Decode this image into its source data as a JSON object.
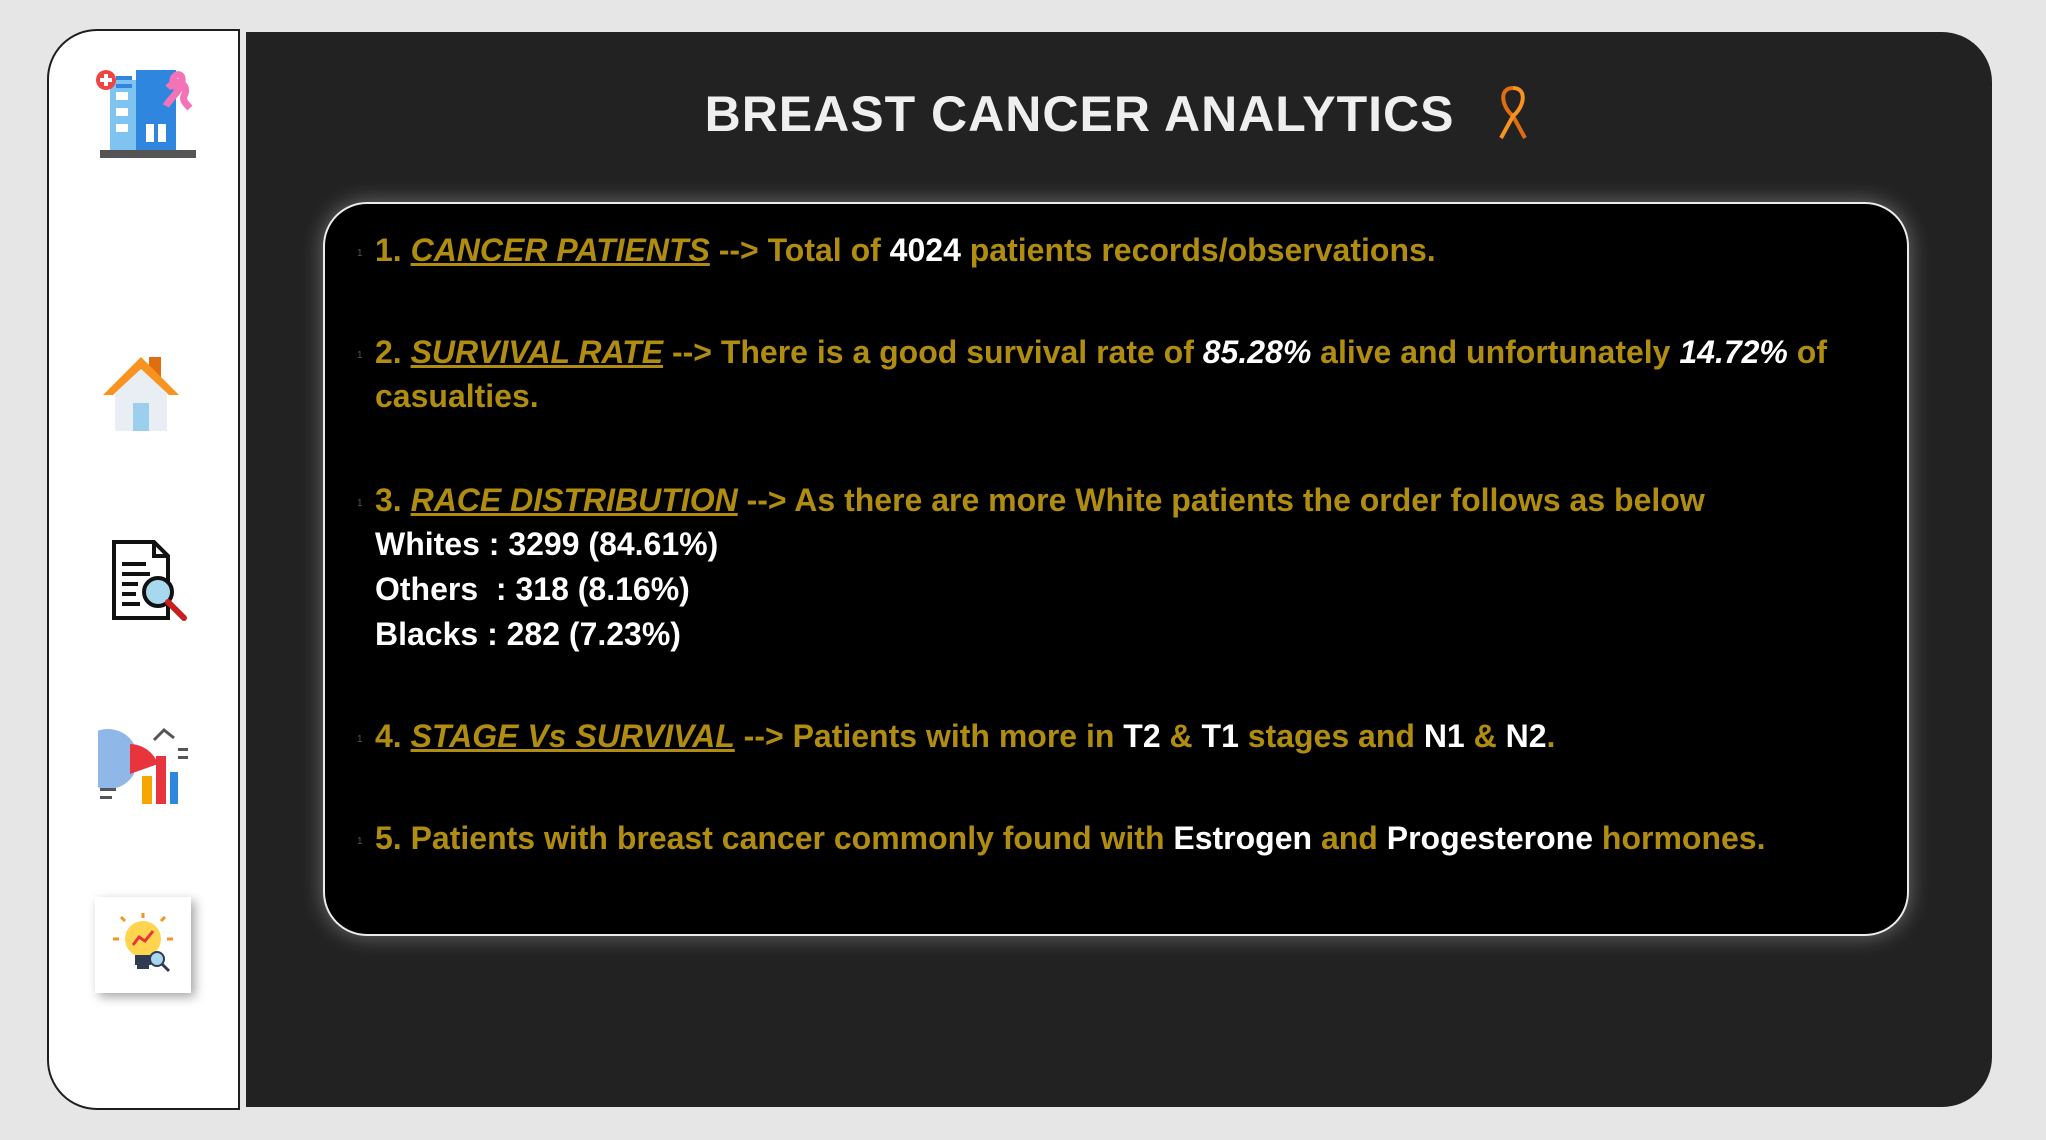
{
  "title": "BREAST CANCER ANALYTICS",
  "sidebar": {
    "icons": [
      "hospital-icon",
      "home-icon",
      "report-search-icon",
      "charts-icon",
      "insight-bulb-icon"
    ]
  },
  "points": {
    "p1": {
      "num": "1.",
      "heading": "CANCER PATIENTS",
      "arrow": "-->",
      "text_a": "Total of",
      "value": "4024",
      "text_b": "patients records/observations."
    },
    "p2": {
      "num": "2.",
      "heading": "SURVIVAL RATE",
      "arrow": "-->",
      "text_a": "There is a good survival rate of",
      "alive": "85.28%",
      "text_b": "alive and unfortunately",
      "dead": "14.72%",
      "text_c": "of casualties."
    },
    "p3": {
      "num": "3.",
      "heading": "RACE DISTRIBUTION",
      "arrow": "-->",
      "text_a": "As there are more White patients the order follows as below",
      "lines": [
        "Whites : 3299 (84.61%)",
        "Others  : 318 (8.16%)",
        "Blacks : 282 (7.23%)"
      ]
    },
    "p4": {
      "num": "4.",
      "heading": "STAGE Vs SURVIVAL",
      "arrow": "-->",
      "text_a": "Patients with more in",
      "t2": "T2",
      "amp1": "&",
      "t1": "T1",
      "text_b": "stages and",
      "n1": "N1",
      "amp2": "&",
      "n2": "N2",
      "dot": "."
    },
    "p5": {
      "num": "5.",
      "text_a": "Patients with breast cancer commonly found with",
      "estrogen": "Estrogen",
      "text_b": "and",
      "progesterone": "Progesterone",
      "text_c": "hormones."
    }
  },
  "colors": {
    "accent_gold": "#b08d10",
    "panel": "#222222",
    "card": "#000000"
  }
}
